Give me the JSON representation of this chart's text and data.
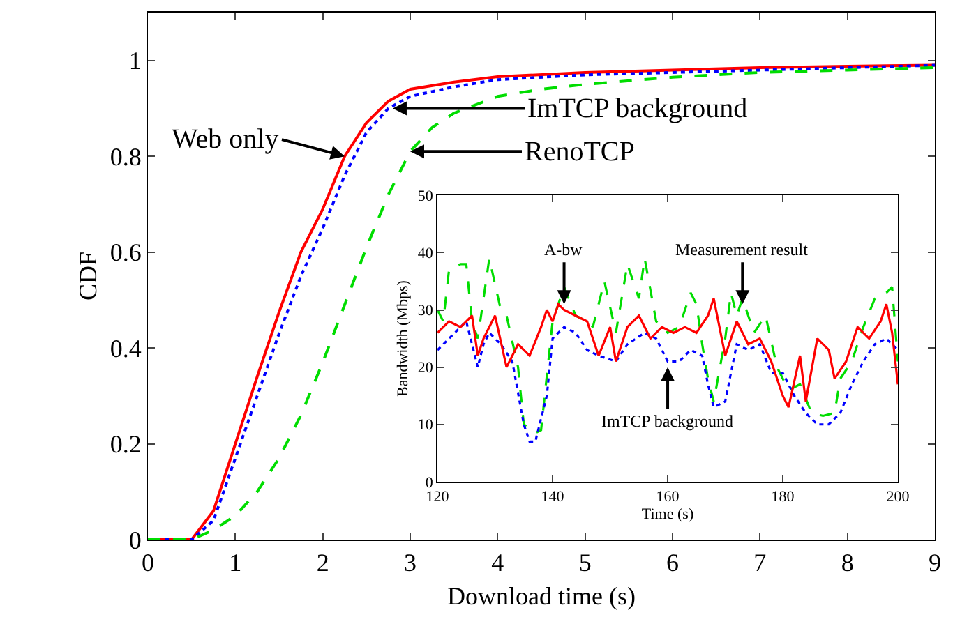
{
  "chart_data": [
    {
      "type": "line",
      "xlabel": "Download time (s)",
      "ylabel": "CDF",
      "xlim": [
        0,
        9
      ],
      "ylim": [
        0,
        1.1
      ],
      "xticks": [
        0,
        1,
        2,
        3,
        4,
        5,
        6,
        7,
        8,
        9
      ],
      "yticks": [
        0,
        0.2,
        0.4,
        0.6,
        0.8,
        1
      ],
      "marker": "none",
      "series": [
        {
          "color": "#ff0000",
          "line_style": "solid",
          "x": [
            0,
            0.5,
            0.75,
            1,
            1.25,
            1.5,
            1.75,
            2,
            2.25,
            2.5,
            2.75,
            3,
            3.5,
            4,
            5,
            6,
            7,
            8,
            9
          ],
          "values": [
            0,
            0,
            0.06,
            0.2,
            0.34,
            0.475,
            0.6,
            0.69,
            0.8,
            0.87,
            0.915,
            0.94,
            0.955,
            0.966,
            0.975,
            0.98,
            0.985,
            0.988,
            0.99
          ]
        },
        {
          "color": "#0000ff",
          "line_style": "dotted",
          "x": [
            0,
            0.5,
            0.75,
            1,
            1.25,
            1.5,
            1.75,
            2,
            2.25,
            2.5,
            2.75,
            3,
            3.5,
            4,
            5,
            6,
            7,
            8,
            9
          ],
          "values": [
            0,
            0,
            0.04,
            0.17,
            0.3,
            0.43,
            0.55,
            0.65,
            0.76,
            0.85,
            0.9,
            0.925,
            0.945,
            0.96,
            0.97,
            0.975,
            0.98,
            0.985,
            0.99
          ]
        },
        {
          "color": "#00dd00",
          "line_style": "dashed",
          "x": [
            0,
            0.5,
            0.75,
            1,
            1.25,
            1.5,
            1.75,
            2,
            2.25,
            2.5,
            2.75,
            3,
            3.25,
            3.5,
            4,
            4.5,
            5,
            6,
            7,
            8,
            9
          ],
          "values": [
            0,
            0,
            0.02,
            0.05,
            0.1,
            0.17,
            0.26,
            0.37,
            0.49,
            0.61,
            0.72,
            0.81,
            0.86,
            0.89,
            0.925,
            0.94,
            0.95,
            0.965,
            0.975,
            0.98,
            0.985
          ]
        }
      ],
      "annotations": [
        {
          "text": "Web only",
          "x": 2.25,
          "y": 0.8
        },
        {
          "text": "ImTCP background",
          "x": 2.8,
          "y": 0.9
        },
        {
          "text": "RenoTCP",
          "x": 3,
          "y": 0.81
        }
      ]
    },
    {
      "type": "line",
      "xlabel": "Time (s)",
      "ylabel": "Bandwidth (Mbps)",
      "xlim": [
        120,
        200
      ],
      "ylim": [
        0,
        50
      ],
      "xticks": [
        120,
        140,
        160,
        180,
        200
      ],
      "yticks": [
        0,
        10,
        20,
        30,
        40,
        50
      ],
      "marker": "none",
      "series": [
        {
          "color": "#00dd00",
          "line_style": "dashed",
          "x": [
            120,
            121,
            122,
            124,
            125,
            126,
            127,
            129,
            131,
            132,
            134,
            135,
            137,
            138,
            140,
            142,
            144,
            146,
            147,
            149,
            151,
            153,
            155,
            156,
            158,
            160,
            162,
            164,
            165,
            166,
            167,
            168,
            170,
            171,
            172,
            173,
            175,
            177,
            179,
            181,
            183,
            185,
            187,
            189,
            190,
            192,
            194,
            196,
            198,
            199,
            200
          ],
          "values": [
            30,
            28,
            37,
            38,
            38,
            28,
            25,
            39,
            30,
            29,
            20,
            10,
            8.5,
            9,
            28,
            34,
            29,
            28,
            27,
            35,
            26,
            38,
            32,
            39,
            28,
            26,
            27,
            33,
            31,
            24,
            18,
            14,
            25,
            33,
            29,
            32,
            26,
            29,
            20,
            16,
            17,
            12,
            11.5,
            12,
            18,
            21,
            27,
            32,
            33,
            34,
            21
          ]
        },
        {
          "color": "#0000ff",
          "line_style": "dotted",
          "x": [
            120,
            122,
            124,
            125,
            127,
            128,
            129,
            131,
            133,
            135,
            136,
            137,
            139,
            140,
            142,
            144,
            146,
            148,
            151,
            153,
            156,
            158,
            160,
            162,
            164,
            166,
            167,
            168,
            170,
            172,
            174,
            176,
            178,
            180,
            182,
            184,
            186,
            188,
            190,
            192,
            194,
            196,
            198,
            200
          ],
          "values": [
            23,
            25,
            27,
            28,
            20,
            24,
            26,
            24,
            21,
            10,
            7,
            7,
            15,
            25,
            27,
            26,
            23,
            22,
            21,
            24,
            26,
            25,
            21,
            21,
            23,
            22,
            17,
            13,
            14,
            24,
            23,
            24,
            19,
            19,
            15,
            12,
            10,
            10,
            12,
            17,
            21,
            24,
            25,
            23
          ]
        },
        {
          "color": "#ff0000",
          "line_style": "solid",
          "x": [
            120,
            122,
            124,
            126,
            127,
            128,
            130,
            132,
            134,
            136,
            138,
            139,
            140,
            141,
            142,
            144,
            146,
            148,
            150,
            151,
            153,
            155,
            157,
            159,
            161,
            163,
            165,
            167,
            168,
            170,
            172,
            174,
            176,
            178,
            180,
            181,
            183,
            184,
            186,
            188,
            189,
            191,
            193,
            195,
            197,
            198,
            199,
            200
          ],
          "values": [
            26,
            28,
            27,
            29,
            22,
            25,
            29,
            20,
            24,
            22,
            27,
            30,
            28,
            31,
            30,
            29,
            28,
            22,
            27,
            21,
            27,
            29,
            25,
            27,
            26,
            27,
            26,
            29,
            32,
            22,
            28,
            24,
            25,
            21,
            15,
            13,
            22,
            14,
            25,
            23,
            18,
            21,
            27,
            25,
            28,
            31,
            26,
            17
          ]
        }
      ],
      "annotations": [
        {
          "text": "A-bw",
          "x": 142,
          "y": 31
        },
        {
          "text": "Measurement result",
          "x": 173,
          "y": 31
        },
        {
          "text": "ImTCP background",
          "x": 160,
          "y": 20
        }
      ]
    }
  ]
}
